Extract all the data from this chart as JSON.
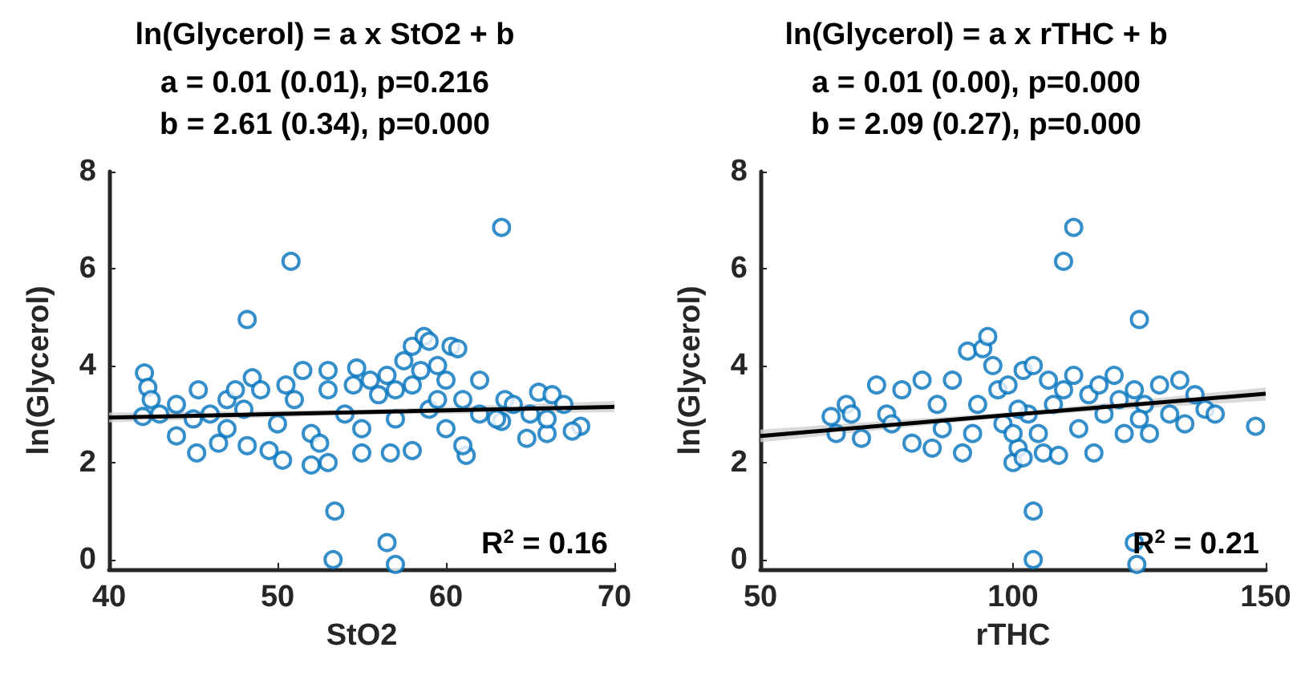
{
  "chart_data": [
    {
      "type": "scatter",
      "title": "ln(Glycerol) = a x StO2 + b",
      "subtitle": "a = 0.01 (0.01), p=0.216\nb = 2.61 (0.34), p=0.000",
      "xlabel": "StO2",
      "ylabel": "ln(Glycerol)",
      "annotations": [
        "R$^{2}$ = 0.16"
      ],
      "xlim": [
        40,
        70
      ],
      "xticks": [
        40,
        50,
        60,
        70
      ],
      "ylim": [
        -0.2,
        8
      ],
      "yticks": [
        0,
        2,
        4,
        6,
        8
      ],
      "grid": false,
      "series": [
        {
          "marker": "circle",
          "color": "#0072bd",
          "x": [
            63.3,
            50.8,
            48.2,
            53.4,
            56.5,
            53.3,
            57,
            42.1,
            42.3,
            42.5,
            45.3,
            47,
            48.5,
            51.5,
            53,
            54.7,
            56.5,
            57.5,
            58,
            58.7,
            59,
            60.3,
            60.7,
            59.5,
            62,
            63.5,
            65.5,
            66.3,
            67,
            68,
            67.5,
            66,
            64.8,
            63.3,
            61.2,
            61,
            58,
            56.7,
            55,
            53,
            52,
            50.3,
            49.5,
            48.2,
            46.5,
            45.2,
            44,
            42,
            43,
            44,
            46,
            47,
            48,
            50,
            51,
            52,
            53,
            54,
            55,
            56,
            57,
            58,
            59,
            60,
            61,
            62,
            63,
            64,
            65,
            66,
            52.5,
            54.5,
            57,
            59.5,
            49,
            45,
            47.5,
            50.5,
            55.5,
            58.5,
            60
          ],
          "values": [
            6.85,
            6.15,
            4.95,
            1.0,
            0.35,
            0.0,
            -0.1,
            3.85,
            3.55,
            3.3,
            3.5,
            3.3,
            3.75,
            3.9,
            3.9,
            3.95,
            3.8,
            4.1,
            4.4,
            4.6,
            4.5,
            4.4,
            4.35,
            4.0,
            3.7,
            3.3,
            3.45,
            3.4,
            3.2,
            2.75,
            2.65,
            2.6,
            2.5,
            2.85,
            2.15,
            2.35,
            2.25,
            2.2,
            2.2,
            2.0,
            1.95,
            2.05,
            2.25,
            2.35,
            2.4,
            2.2,
            2.55,
            2.95,
            3.0,
            3.2,
            3.0,
            2.7,
            3.1,
            2.8,
            3.3,
            2.6,
            3.5,
            3.0,
            2.7,
            3.4,
            2.9,
            3.6,
            3.1,
            2.7,
            3.3,
            3.0,
            2.9,
            3.2,
            3.0,
            2.9,
            2.4,
            3.6,
            3.5,
            3.3,
            3.5,
            2.9,
            3.5,
            3.6,
            3.7,
            3.9,
            3.7
          ]
        },
        {
          "type": "line",
          "color": "#000000",
          "x": [
            40,
            55,
            70
          ],
          "values": [
            2.93,
            3.04,
            3.15
          ],
          "lower": [
            2.83,
            2.99,
            3.04
          ],
          "upper": [
            3.03,
            3.09,
            3.27
          ]
        }
      ]
    },
    {
      "type": "scatter",
      "title": "ln(Glycerol) = a x rTHC + b",
      "subtitle": "a = 0.01 (0.00), p=0.000\nb = 2.09 (0.27), p=0.000",
      "xlabel": "rTHC",
      "ylabel": "ln(Glycerol)",
      "annotations": [
        "R$^{2}$ = 0.21"
      ],
      "xlim": [
        50,
        150
      ],
      "xticks": [
        50,
        100,
        150
      ],
      "ylim": [
        -0.2,
        8
      ],
      "yticks": [
        0,
        2,
        4,
        6,
        8
      ],
      "grid": false,
      "series": [
        {
          "marker": "circle",
          "color": "#0072bd",
          "x": [
            112,
            110,
            125,
            104,
            104,
            124,
            124.5,
            148,
            64,
            65,
            67,
            70,
            73,
            75,
            78,
            80,
            82,
            84,
            86,
            88,
            90,
            91,
            93,
            94,
            95,
            96,
            97,
            98,
            100,
            101,
            102,
            103,
            104,
            105,
            106,
            107,
            108,
            109,
            110,
            112,
            113,
            115,
            116,
            118,
            120,
            121,
            122,
            124,
            126,
            127,
            129,
            131,
            133,
            134,
            136,
            138,
            140,
            99,
            100,
            101,
            102,
            92,
            85,
            76,
            68,
            125,
            117
          ],
          "values": [
            6.85,
            6.15,
            4.95,
            1.0,
            0.0,
            0.35,
            -0.1,
            2.75,
            2.95,
            2.6,
            3.2,
            2.5,
            3.6,
            3.0,
            3.5,
            2.4,
            3.7,
            2.3,
            2.7,
            3.7,
            2.2,
            4.3,
            3.2,
            4.35,
            4.6,
            4.0,
            3.5,
            2.8,
            2.0,
            2.3,
            3.9,
            3.0,
            4.0,
            2.6,
            2.2,
            3.7,
            3.2,
            2.15,
            3.5,
            3.8,
            2.7,
            3.4,
            2.2,
            3.0,
            3.8,
            3.3,
            2.6,
            3.5,
            3.2,
            2.6,
            3.6,
            3.0,
            3.7,
            2.8,
            3.4,
            3.1,
            3.0,
            3.6,
            2.6,
            3.1,
            2.1,
            2.6,
            3.2,
            2.8,
            3.0,
            2.9,
            3.6
          ]
        },
        {
          "type": "line",
          "color": "#000000",
          "x": [
            50,
            100,
            150
          ],
          "values": [
            2.55,
            2.99,
            3.42
          ],
          "lower": [
            2.42,
            2.95,
            3.28
          ],
          "upper": [
            2.68,
            3.04,
            3.55
          ]
        }
      ]
    }
  ]
}
